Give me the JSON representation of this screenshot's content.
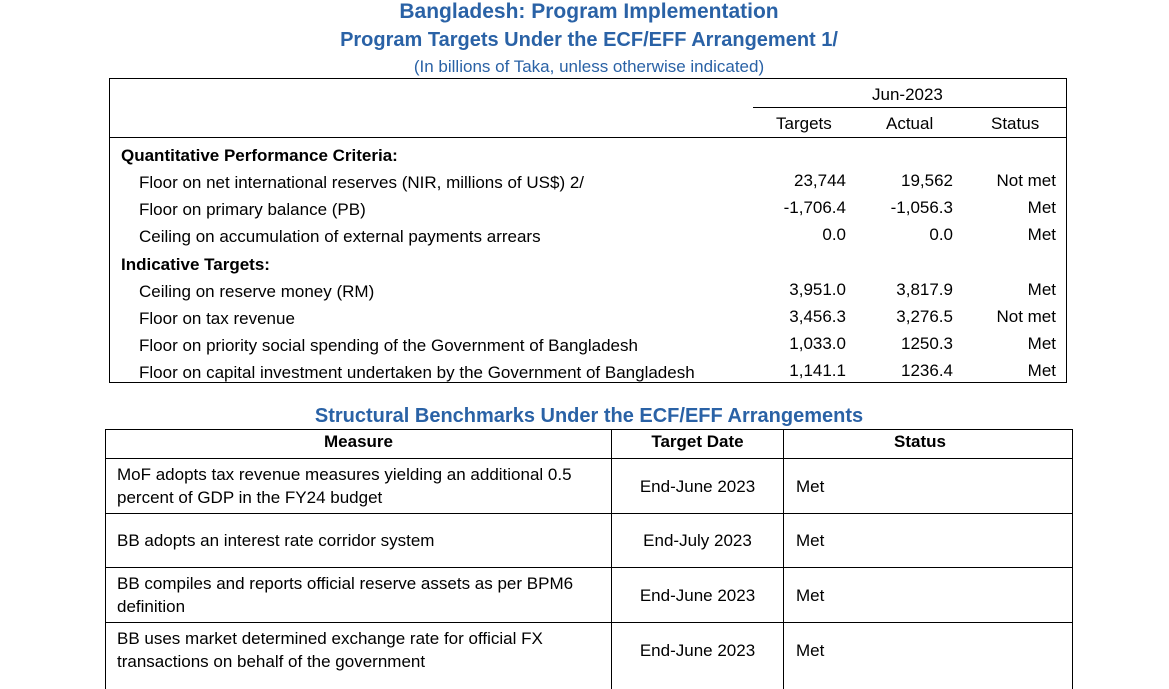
{
  "header": {
    "title": "Bangladesh: Program Implementation",
    "subtitle": "Program Targets Under the ECF/EFF Arrangement 1/",
    "units": "(In billions of Taka, unless otherwise indicated)"
  },
  "targets_table": {
    "period": "Jun-2023",
    "col_targets": "Targets",
    "col_actual": "Actual",
    "col_status": "Status",
    "sections": [
      {
        "heading": "Quantitative Performance Criteria:",
        "rows": [
          {
            "label": "Floor on net international reserves (NIR, millions of US$) 2/",
            "target": "23,744",
            "actual": "19,562",
            "status": "Not met"
          },
          {
            "label": "Floor on primary balance (PB)",
            "target": "-1,706.4",
            "actual": "-1,056.3",
            "status": "Met"
          },
          {
            "label": "Ceiling on accumulation of external payments arrears",
            "target": "0.0",
            "actual": "0.0",
            "status": "Met"
          }
        ]
      },
      {
        "heading": "Indicative Targets:",
        "rows": [
          {
            "label": "Ceiling on reserve money (RM)",
            "target": "3,951.0",
            "actual": "3,817.9",
            "status": "Met"
          },
          {
            "label": "Floor on tax revenue",
            "target": "3,456.3",
            "actual": "3,276.5",
            "status": "Not met"
          },
          {
            "label": "Floor on priority social spending of the Government of Bangladesh",
            "target": "1,033.0",
            "actual": "1250.3",
            "status": "Met"
          },
          {
            "label": "Floor on capital investment undertaken by the Government of Bangladesh",
            "target": "1,141.1",
            "actual": "1236.4",
            "status": "Met"
          }
        ]
      }
    ]
  },
  "benchmarks": {
    "title": "Structural Benchmarks Under the ECF/EFF Arrangements",
    "col_measure": "Measure",
    "col_date": "Target Date",
    "col_status": "Status",
    "rows": [
      {
        "measure_line1": "MoF adopts tax revenue measures yielding an additional 0.5",
        "measure_line2": "percent of GDP in the FY24 budget",
        "date": "End-June 2023",
        "status": "Met"
      },
      {
        "measure_line1": "BB adopts an interest rate corridor system",
        "measure_line2": "",
        "date": "End-July 2023",
        "status": "Met"
      },
      {
        "measure_line1": "BB compiles and reports official reserve assets as per BPM6",
        "measure_line2": "definition",
        "date": "End-June 2023",
        "status": "Met"
      },
      {
        "measure_line1": "BB uses market determined exchange rate for official FX",
        "measure_line2": "transactions on behalf of the government",
        "date": "End-June 2023",
        "status": "Met"
      }
    ]
  }
}
